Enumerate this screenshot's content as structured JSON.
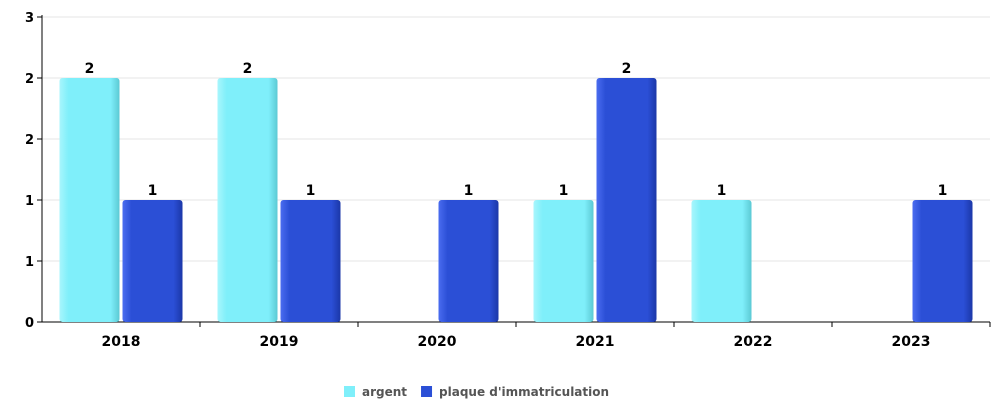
{
  "chart_data": {
    "type": "bar",
    "categories": [
      "2018",
      "2019",
      "2020",
      "2021",
      "2022",
      "2023"
    ],
    "series": [
      {
        "name": "argent",
        "values": [
          2,
          2,
          null,
          1,
          1,
          null
        ],
        "data_labels": [
          "2",
          "2",
          "",
          "1",
          "1",
          ""
        ],
        "color": "#7FEFFA"
      },
      {
        "name": "plaque d'immatriculation",
        "values": [
          1,
          1,
          1,
          2,
          null,
          1
        ],
        "data_labels": [
          "1",
          "1",
          "1",
          "2",
          "",
          "1"
        ],
        "color": "#2B4FD6"
      }
    ],
    "y_tick_labels": [
      "0",
      "1",
      "1",
      "2",
      "2",
      "3"
    ],
    "ylim": [
      0,
      2.5
    ],
    "grid": true,
    "legend_position": "bottom-center"
  }
}
